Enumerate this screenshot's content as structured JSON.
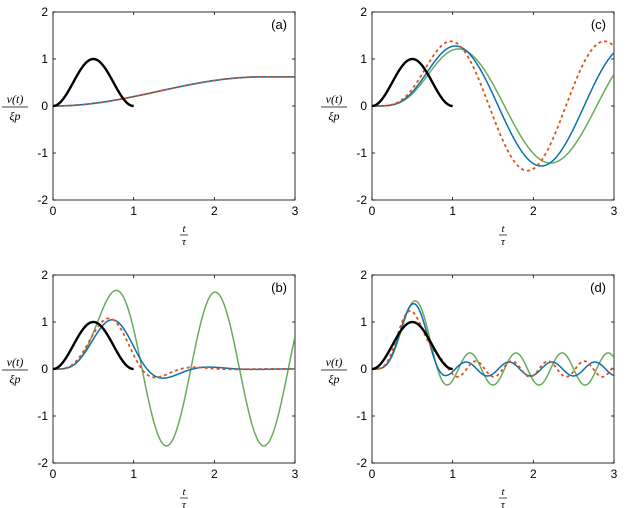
{
  "chart_data": [
    {
      "type": "line",
      "panel": "a",
      "panel_label": "(a)",
      "xlabel": {
        "num": "t",
        "den": "τ"
      },
      "ylabel": {
        "num": "ν(t)",
        "den": "ξp"
      },
      "xlim": [
        0,
        3
      ],
      "ylim": [
        -2,
        2
      ],
      "xticks": [
        0,
        1,
        2,
        3
      ],
      "yticks": [
        -2,
        -1,
        0,
        1,
        2
      ],
      "grid": false,
      "pulse": {
        "color": "#000000",
        "width": 2.4,
        "dashed": false,
        "x_end": 1
      },
      "series": [
        {
          "color": "#6aaa5e",
          "dashed": false,
          "width": 1.5,
          "model": "undamped",
          "omega": 0.6,
          "damping": 0
        },
        {
          "color": "#0b6fb0",
          "dashed": false,
          "width": 1.5,
          "model": "undamped",
          "omega": 0.6,
          "damping": 0
        },
        {
          "color": "#e0521c",
          "dashed": true,
          "width": 1.8,
          "model": "undamped",
          "omega": 0.6,
          "damping": 0
        }
      ]
    },
    {
      "type": "line",
      "panel": "b",
      "panel_label": "(b)",
      "xlabel": {
        "num": "t",
        "den": "τ"
      },
      "ylabel": {
        "num": "ν(t)",
        "den": "ξp"
      },
      "xlim": [
        0,
        3
      ],
      "ylim": [
        -2,
        2
      ],
      "xticks": [
        0,
        1,
        2,
        3
      ],
      "yticks": [
        -2,
        -1,
        0,
        1,
        2
      ],
      "grid": false,
      "pulse": {
        "color": "#000000",
        "width": 2.4,
        "dashed": false,
        "x_end": 1
      },
      "series": [
        {
          "color": "#6aaa5e",
          "dashed": false,
          "width": 1.5,
          "omega": 5.2,
          "damping": 0.0
        },
        {
          "color": "#0b6fb0",
          "dashed": false,
          "width": 1.5,
          "omega": 6.2,
          "damping": 0.45
        },
        {
          "color": "#e0521c",
          "dashed": true,
          "width": 1.8,
          "omega": 7.3,
          "damping": 0.45
        }
      ]
    },
    {
      "type": "line",
      "panel": "c",
      "panel_label": "(c)",
      "xlabel": {
        "num": "t",
        "den": "τ"
      },
      "ylabel": {
        "num": "ν(t)",
        "den": "ξp"
      },
      "xlim": [
        0,
        3
      ],
      "ylim": [
        -2,
        2
      ],
      "xticks": [
        0,
        1,
        2,
        3
      ],
      "yticks": [
        -2,
        -1,
        0,
        1,
        2
      ],
      "grid": false,
      "pulse": {
        "color": "#000000",
        "width": 2.4,
        "dashed": false,
        "x_end": 1
      },
      "series": [
        {
          "color": "#6aaa5e",
          "dashed": false,
          "width": 1.5,
          "omega": 2.75,
          "damping": 0.0
        },
        {
          "color": "#0b6fb0",
          "dashed": false,
          "width": 1.5,
          "omega": 2.95,
          "damping": 0.0
        },
        {
          "color": "#e0521c",
          "dashed": true,
          "width": 1.8,
          "omega": 3.3,
          "damping": 0.0
        }
      ]
    },
    {
      "type": "line",
      "panel": "d",
      "panel_label": "(d)",
      "xlabel": {
        "num": "t",
        "den": "τ"
      },
      "ylabel": {
        "num": "ν(t)",
        "den": "ξp"
      },
      "xlim": [
        0,
        3
      ],
      "ylim": [
        -2,
        2
      ],
      "xticks": [
        0,
        1,
        2,
        3
      ],
      "yticks": [
        -2,
        -1,
        0,
        1,
        2
      ],
      "grid": false,
      "pulse": {
        "color": "#000000",
        "width": 2.4,
        "dashed": false,
        "x_end": 1
      },
      "series": [
        {
          "color": "#6aaa5e",
          "dashed": false,
          "width": 1.5,
          "omega": 11.0,
          "damping": 0.0
        },
        {
          "color": "#0b6fb0",
          "dashed": false,
          "width": 1.5,
          "omega": 11.8,
          "damping": 0.0
        },
        {
          "color": "#e0521c",
          "dashed": true,
          "width": 1.8,
          "omega": 14.0,
          "damping": 0.0
        }
      ]
    }
  ]
}
